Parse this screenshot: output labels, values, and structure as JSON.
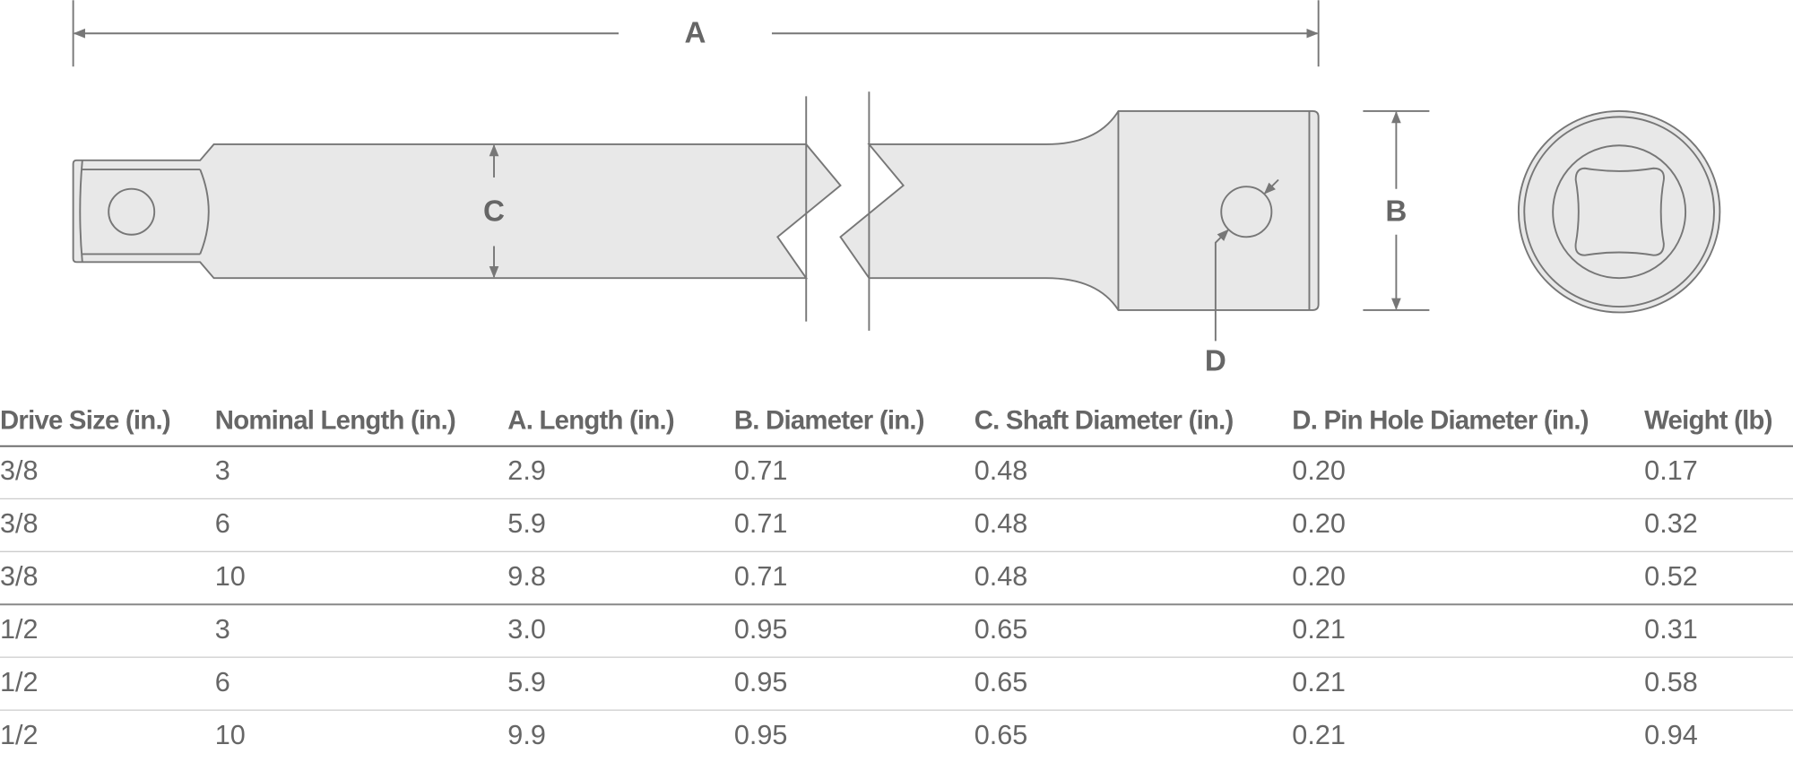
{
  "diagram": {
    "labels": {
      "a": "A",
      "b": "B",
      "c": "C",
      "d": "D"
    }
  },
  "table": {
    "headers": [
      "Drive Size (in.)",
      "Nominal Length (in.)",
      "A. Length (in.)",
      "B. Diameter (in.)",
      "C. Shaft Diameter (in.)",
      "D. Pin Hole Diameter (in.)",
      "Weight (lb)"
    ],
    "rows": [
      [
        "3/8",
        "3",
        "2.9",
        "0.71",
        "0.48",
        "0.20",
        "0.17"
      ],
      [
        "3/8",
        "6",
        "5.9",
        "0.71",
        "0.48",
        "0.20",
        "0.32"
      ],
      [
        "3/8",
        "10",
        "9.8",
        "0.71",
        "0.48",
        "0.20",
        "0.52"
      ],
      [
        "1/2",
        "3",
        "3.0",
        "0.95",
        "0.65",
        "0.21",
        "0.31"
      ],
      [
        "1/2",
        "6",
        "5.9",
        "0.95",
        "0.65",
        "0.21",
        "0.58"
      ],
      [
        "1/2",
        "10",
        "9.9",
        "0.95",
        "0.65",
        "0.21",
        "0.94"
      ]
    ]
  }
}
